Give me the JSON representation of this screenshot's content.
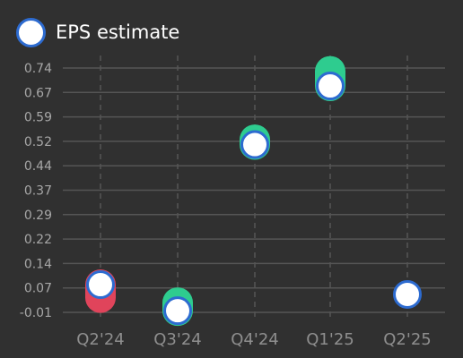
{
  "legend": {
    "label": "EPS estimate"
  },
  "colors": {
    "background": "#303030",
    "grid": "#555555",
    "estimate_fill": "#ffffff",
    "estimate_stroke": "#2d6bd0",
    "beat": "#2ecc8f",
    "miss": "#e0445b"
  },
  "chart_data": {
    "type": "scatter",
    "categories": [
      "Q2'24",
      "Q3'24",
      "Q4'24",
      "Q1'25",
      "Q2'25"
    ],
    "series": [
      {
        "name": "EPS estimate",
        "values": [
          0.075,
          -0.005,
          0.505,
          0.685,
          0.045
        ]
      },
      {
        "values": [
          0.035,
          0.02,
          0.52,
          0.73,
          null
        ]
      }
    ],
    "yticks": [
      "0.74",
      "0.67",
      "0.59",
      "0.52",
      "0.44",
      "0.37",
      "0.29",
      "0.22",
      "0.14",
      "0.07",
      "-0.01"
    ],
    "ylim": [
      -0.01,
      0.74
    ],
    "grid": true,
    "legend_position": "top-left"
  }
}
